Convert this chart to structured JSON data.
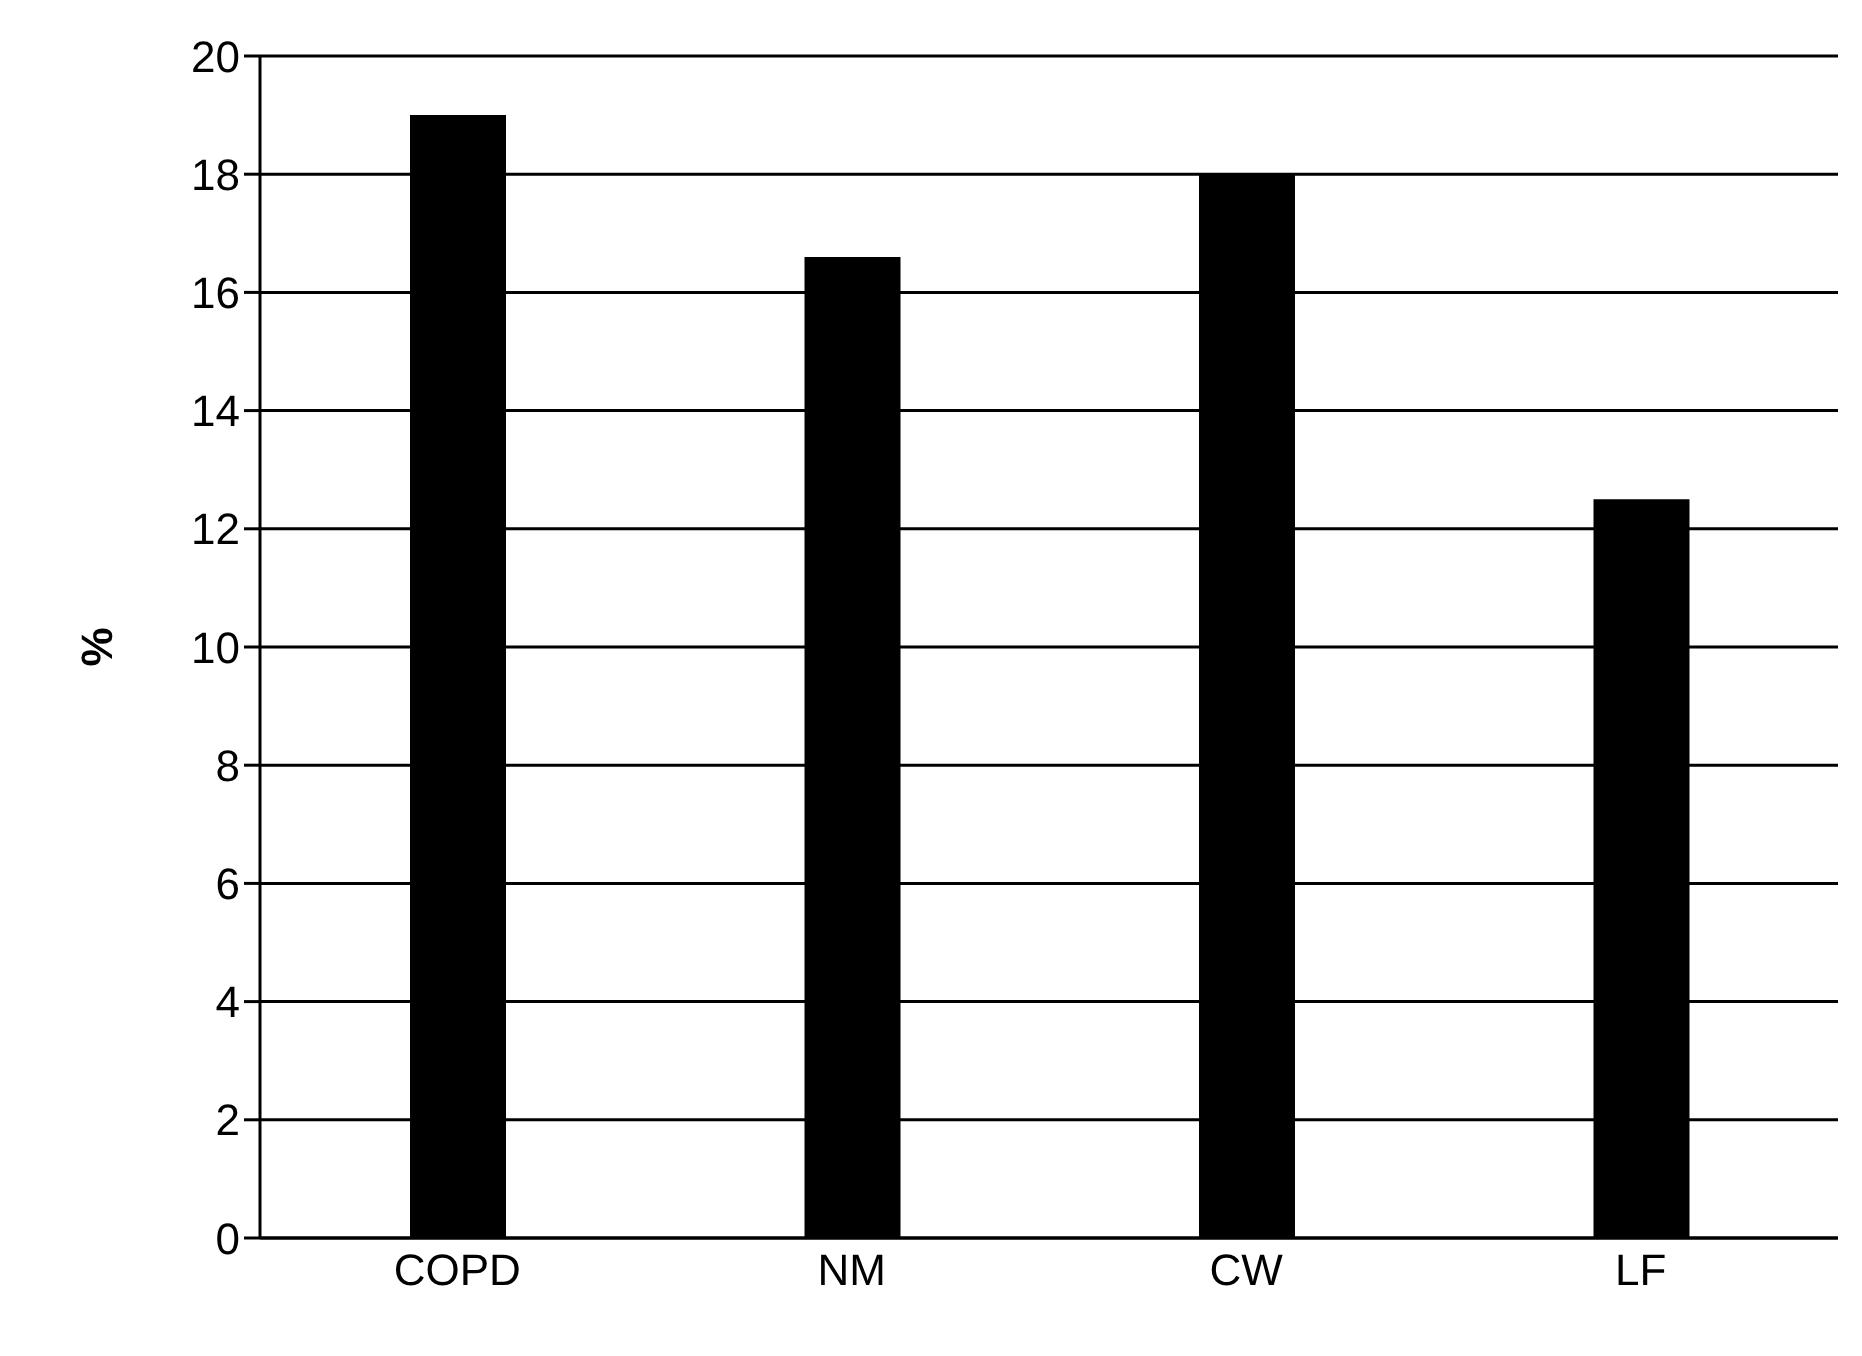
{
  "chart_data": {
    "type": "bar",
    "ylabel": "%",
    "categories": [
      "COPD",
      "NM",
      "CW",
      "LF"
    ],
    "values": [
      19,
      16.6,
      18,
      12.5
    ],
    "color": "#000000",
    "ylim": [
      0,
      20
    ],
    "yticks": [
      0,
      2,
      4,
      6,
      8,
      10,
      12,
      14,
      16,
      18,
      20
    ],
    "grid": "y"
  }
}
